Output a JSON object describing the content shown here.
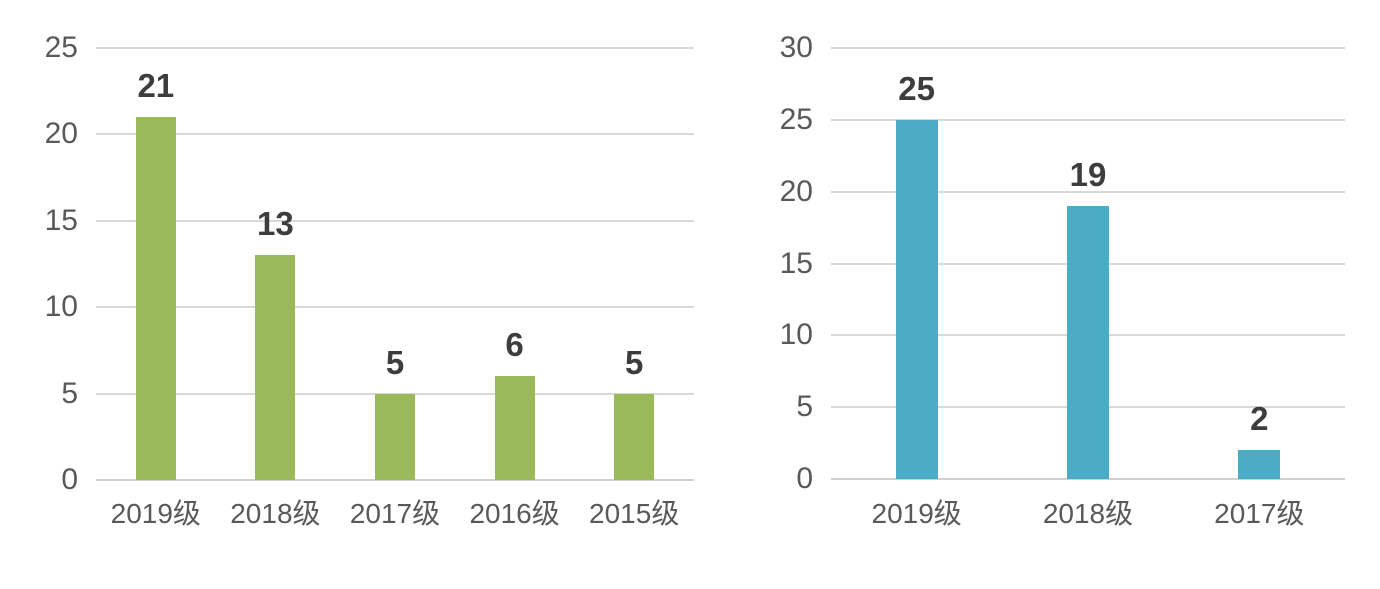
{
  "page": {
    "background_color": "#FFFFFF"
  },
  "colors": {
    "gridline": "#D9D9D9",
    "axis_line": "#CFCFCF",
    "axis_text": "#595959",
    "value_label_text": "#3D3D3D",
    "left_chart_bar": "#9ABA5A",
    "right_chart_bar": "#4BACC6"
  },
  "chart_data": [
    {
      "type": "bar",
      "title": "",
      "categories": [
        "2019级",
        "2018级",
        "2017级",
        "2016级",
        "2015级"
      ],
      "values": [
        21,
        13,
        5,
        6,
        5
      ],
      "bar_color": "#9ABA5A",
      "xlabel": "",
      "ylabel": "",
      "ylim": [
        0,
        25
      ],
      "yticks": [
        0,
        5,
        10,
        15,
        20,
        25
      ],
      "grid": true,
      "legend_position": "none",
      "data_labels_shown": true
    },
    {
      "type": "bar",
      "title": "",
      "categories": [
        "2019级",
        "2018级",
        "2017级"
      ],
      "values": [
        25,
        19,
        2
      ],
      "bar_color": "#4BACC6",
      "xlabel": "",
      "ylabel": "",
      "ylim": [
        0,
        30
      ],
      "yticks": [
        0,
        5,
        10,
        15,
        20,
        25,
        30
      ],
      "grid": true,
      "legend_position": "none",
      "data_labels_shown": true
    }
  ]
}
